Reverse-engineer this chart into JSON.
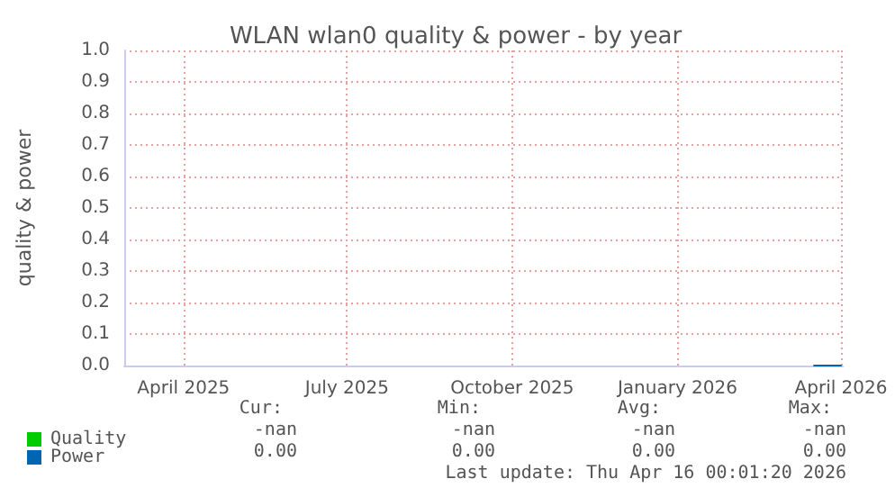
{
  "chart_data": {
    "type": "line",
    "title": "WLAN wlan0 quality & power - by year",
    "ylabel": "quality & power",
    "xlim": [
      "2025-03-13",
      "2026-04-17"
    ],
    "xticks": [
      {
        "value": "2025-04-15",
        "label": "April 2025"
      },
      {
        "value": "2025-07-15",
        "label": "July 2025"
      },
      {
        "value": "2025-10-15",
        "label": "October 2025"
      },
      {
        "value": "2026-01-15",
        "label": "January 2026"
      },
      {
        "value": "2026-04-16",
        "label": "April 2026"
      }
    ],
    "ylim": [
      0,
      1
    ],
    "yticks": [
      {
        "value": 0,
        "label": "0.0"
      },
      {
        "value": 0.1,
        "label": "0.1"
      },
      {
        "value": 0.2,
        "label": "0.2"
      },
      {
        "value": 0.3,
        "label": "0.3"
      },
      {
        "value": 0.4,
        "label": "0.4"
      },
      {
        "value": 0.5,
        "label": "0.5"
      },
      {
        "value": 0.6,
        "label": "0.6"
      },
      {
        "value": 0.7,
        "label": "0.7"
      },
      {
        "value": 0.8,
        "label": "0.8"
      },
      {
        "value": 0.9,
        "label": "0.9"
      },
      {
        "value": 1,
        "label": "1.0"
      }
    ],
    "grid": true,
    "legend": "bottom left",
    "marker": "none",
    "series": [
      {
        "name": "Quality",
        "color": "#00cc00"
      },
      {
        "name": "Power",
        "color": "#0066b3",
        "x": [
          "2026-04-01",
          "2026-04-16"
        ],
        "values": [
          0,
          0
        ]
      }
    ],
    "annotations": [
      "Cur:",
      "Min:",
      "Avg:",
      "Max:",
      "-nan",
      "-nan",
      "-nan",
      "-nan",
      "0.00",
      "0.00",
      "0.00",
      "0.00",
      "Last update: Thu Apr 16 00:01:20 2026"
    ]
  }
}
